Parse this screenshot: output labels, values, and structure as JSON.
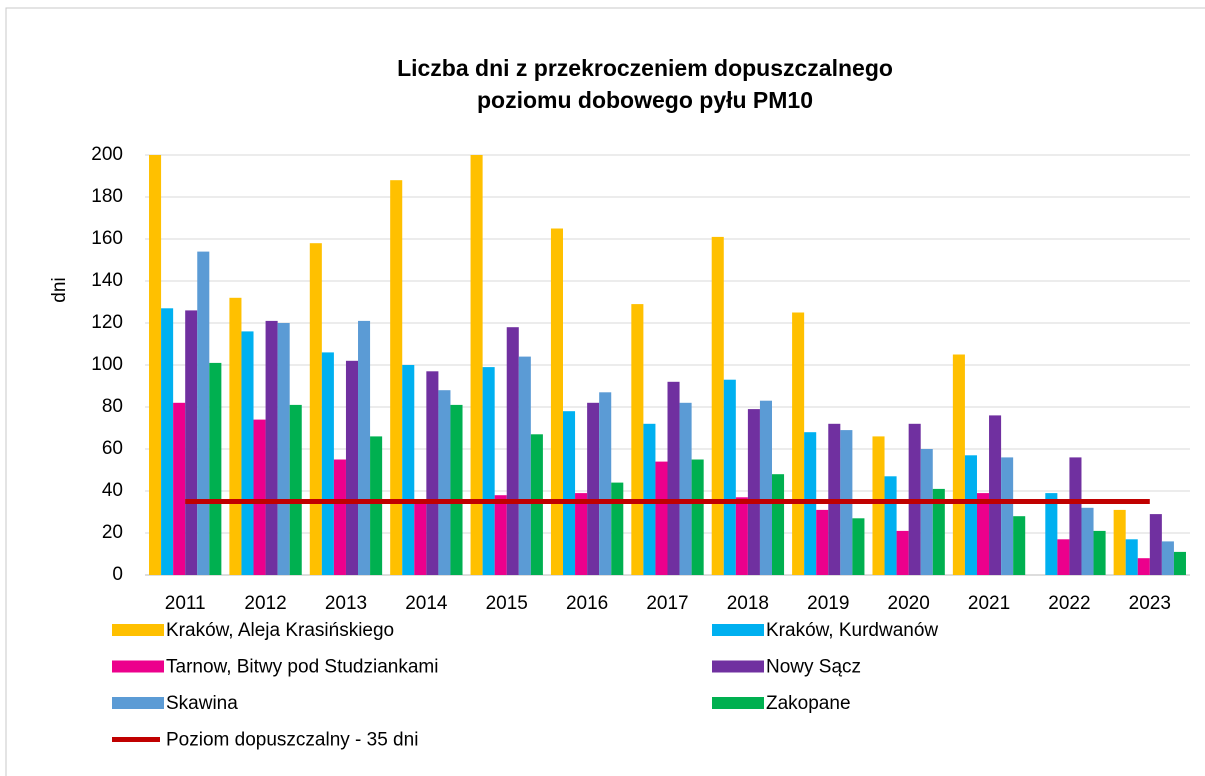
{
  "chart_data": {
    "type": "bar",
    "title": [
      "Liczba dni z przekroczeniem dopuszczalnego",
      "poziomu dobowego pyłu PM10"
    ],
    "ylabel": "dni",
    "categories": [
      "2011",
      "2012",
      "2013",
      "2014",
      "2015",
      "2016",
      "2017",
      "2018",
      "2019",
      "2020",
      "2021",
      "2022",
      "2023"
    ],
    "series": [
      {
        "name": "Kraków, Aleja Krasińskiego",
        "color": "#ffc000",
        "values": [
          200,
          132,
          158,
          188,
          200,
          165,
          129,
          161,
          125,
          66,
          105,
          null,
          31
        ]
      },
      {
        "name": "Kraków, Kurdwanów",
        "color": "#00b0f0",
        "values": [
          127,
          116,
          106,
          100,
          99,
          78,
          72,
          93,
          68,
          47,
          57,
          39,
          17
        ]
      },
      {
        "name": "Tarnow, Bitwy pod Studziankami",
        "color": "#ec008c",
        "values": [
          82,
          74,
          55,
          36,
          38,
          39,
          54,
          37,
          31,
          21,
          39,
          17,
          8
        ]
      },
      {
        "name": "Nowy Sącz",
        "color": "#7030a0",
        "values": [
          126,
          121,
          102,
          97,
          118,
          82,
          92,
          79,
          72,
          72,
          76,
          56,
          29
        ]
      },
      {
        "name": "Skawina",
        "color": "#5b9bd5",
        "values": [
          154,
          120,
          121,
          88,
          104,
          87,
          82,
          83,
          69,
          60,
          56,
          32,
          16
        ]
      },
      {
        "name": "Zakopane",
        "color": "#00b050",
        "values": [
          101,
          81,
          66,
          81,
          67,
          44,
          55,
          48,
          27,
          41,
          28,
          21,
          11
        ]
      },
      {
        "name": "Poziom dopuszczalny - 35 dni",
        "color": "#c00000",
        "type": "line",
        "values": [
          35,
          35,
          35,
          35,
          35,
          35,
          35,
          35,
          35,
          35,
          35,
          35,
          35
        ]
      }
    ],
    "ylim": [
      0,
      200
    ],
    "yticks": [
      0,
      20,
      40,
      60,
      80,
      100,
      120,
      140,
      160,
      180,
      200
    ],
    "grid": true
  }
}
